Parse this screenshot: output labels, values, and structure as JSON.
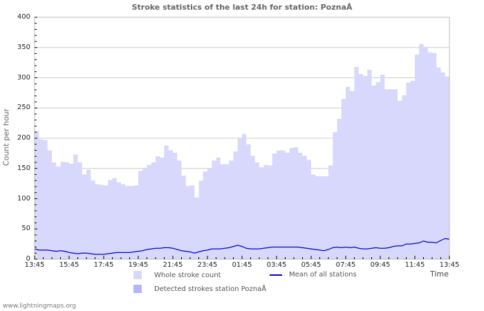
{
  "chart_data": {
    "type": "area",
    "title": "Stroke statistics of the last 24h for station: PoznaÅ",
    "xlabel": "Time",
    "ylabel": "Count per hour",
    "ylim": [
      0,
      400
    ],
    "yticks": [
      0,
      50,
      100,
      150,
      200,
      250,
      300,
      350,
      400
    ],
    "xtick_labels": [
      "13:45",
      "15:45",
      "17:45",
      "19:45",
      "21:45",
      "23:45",
      "01:45",
      "03:45",
      "05:45",
      "07:45",
      "09:45",
      "11:45",
      "13:45"
    ],
    "grid": true,
    "legend_position": "bottom",
    "colors": {
      "whole": "#d8d8fc",
      "detected": "#b4b4f8",
      "mean": "#0000cc",
      "grid": "#cccccc",
      "axis": "#bbbbbb"
    },
    "series": [
      {
        "name": "Whole stroke count",
        "type": "area",
        "values": [
          212,
          198,
          197,
          180,
          160,
          153,
          161,
          160,
          158,
          173,
          160,
          140,
          148,
          130,
          124,
          123,
          122,
          131,
          134,
          127,
          124,
          121,
          121,
          122,
          146,
          151,
          156,
          160,
          170,
          168,
          188,
          180,
          176,
          163,
          138,
          121,
          122,
          102,
          130,
          145,
          150,
          163,
          168,
          157,
          157,
          163,
          178,
          200,
          207,
          190,
          171,
          160,
          152,
          156,
          155,
          175,
          180,
          180,
          176,
          184,
          185,
          176,
          171,
          164,
          140,
          137,
          137,
          137,
          155,
          210,
          232,
          265,
          285,
          278,
          318,
          306,
          303,
          313,
          287,
          293,
          305,
          281,
          281,
          281,
          262,
          271,
          292,
          295,
          338,
          356,
          351,
          342,
          341,
          317,
          309,
          302,
          299
        ]
      },
      {
        "name": "Mean of all stations",
        "type": "line",
        "values": [
          17,
          15,
          15,
          15,
          14,
          13,
          14,
          13,
          11,
          10,
          9,
          10,
          10,
          9,
          8,
          8,
          8,
          9,
          10,
          11,
          11,
          11,
          11,
          12,
          13,
          14,
          16,
          17,
          18,
          18,
          19,
          19,
          18,
          16,
          14,
          13,
          12,
          10,
          12,
          14,
          15,
          17,
          17,
          17,
          18,
          19,
          21,
          23,
          21,
          18,
          17,
          17,
          17,
          18,
          19,
          20,
          20,
          20,
          20,
          20,
          20,
          20,
          19,
          18,
          17,
          16,
          15,
          14,
          16,
          19,
          20,
          19,
          20,
          19,
          20,
          18,
          17,
          17,
          18,
          19,
          18,
          18,
          19,
          21,
          22,
          22,
          25,
          25,
          26,
          27,
          30,
          28,
          28,
          27,
          31,
          34,
          33
        ]
      },
      {
        "name": "Detected strokes station PoznaÅ",
        "type": "area",
        "values": []
      }
    ]
  },
  "title": "Stroke statistics of the last 24h for station: PoznaÅ",
  "axes": {
    "ylabel": "Count per hour",
    "xlabel": "Time",
    "yticks": [
      "0",
      "50",
      "100",
      "150",
      "200",
      "250",
      "300",
      "350",
      "400"
    ],
    "xticks": [
      "13:45",
      "15:45",
      "17:45",
      "19:45",
      "21:45",
      "23:45",
      "01:45",
      "03:45",
      "05:45",
      "07:45",
      "09:45",
      "11:45",
      "13:45"
    ]
  },
  "legend": {
    "whole": "Whole stroke count",
    "mean": "Mean of all stations",
    "detected": "Detected strokes station PoznaÅ"
  },
  "footer": "www.lightningmaps.org"
}
